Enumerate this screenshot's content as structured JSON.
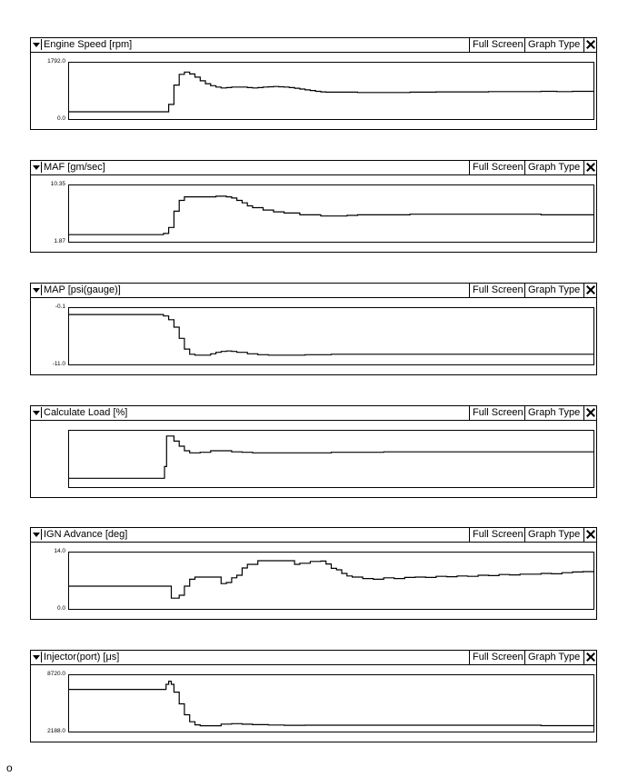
{
  "buttons": {
    "full_screen": "Full Screen",
    "graph_type": "Graph Type"
  },
  "panels": [
    {
      "title": "Engine Speed [rpm]",
      "y_max": "1792.0",
      "y_min": "0.0",
      "chart_data": {
        "type": "line",
        "title": "Engine Speed [rpm]",
        "ylim": [
          0,
          1792
        ],
        "xlim": [
          0,
          100
        ],
        "points": [
          [
            0,
            160
          ],
          [
            18,
            160
          ],
          [
            19,
            420
          ],
          [
            20,
            1100
          ],
          [
            21,
            1480
          ],
          [
            22,
            1560
          ],
          [
            23,
            1490
          ],
          [
            24,
            1380
          ],
          [
            25,
            1250
          ],
          [
            26,
            1150
          ],
          [
            27,
            1080
          ],
          [
            28,
            1030
          ],
          [
            29,
            1000
          ],
          [
            30,
            1010
          ],
          [
            31,
            1030
          ],
          [
            32,
            1030
          ],
          [
            33,
            1030
          ],
          [
            34,
            1010
          ],
          [
            35,
            1000
          ],
          [
            36,
            1010
          ],
          [
            37,
            1030
          ],
          [
            38,
            1040
          ],
          [
            39,
            1050
          ],
          [
            40,
            1040
          ],
          [
            41,
            1030
          ],
          [
            42,
            1010
          ],
          [
            43,
            990
          ],
          [
            44,
            960
          ],
          [
            45,
            930
          ],
          [
            46,
            910
          ],
          [
            47,
            880
          ],
          [
            48,
            860
          ],
          [
            49,
            850
          ],
          [
            50,
            850
          ],
          [
            55,
            840
          ],
          [
            60,
            840
          ],
          [
            65,
            850
          ],
          [
            70,
            860
          ],
          [
            75,
            860
          ],
          [
            80,
            870
          ],
          [
            85,
            870
          ],
          [
            90,
            880
          ],
          [
            93,
            870
          ],
          [
            96,
            880
          ],
          [
            100,
            880
          ]
        ]
      }
    },
    {
      "title": "MAF [gm/sec]",
      "y_max": "10.35",
      "y_min": "1.87",
      "chart_data": {
        "type": "line",
        "title": "MAF [gm/sec]",
        "ylim": [
          1.87,
          10.35
        ],
        "xlim": [
          0,
          100
        ],
        "points": [
          [
            0,
            2.6
          ],
          [
            17,
            2.6
          ],
          [
            18,
            2.8
          ],
          [
            19,
            3.8
          ],
          [
            20,
            6.5
          ],
          [
            21,
            8.3
          ],
          [
            22,
            8.9
          ],
          [
            25,
            8.9
          ],
          [
            28,
            9.0
          ],
          [
            30,
            8.9
          ],
          [
            31,
            8.7
          ],
          [
            32,
            8.3
          ],
          [
            33,
            7.9
          ],
          [
            34,
            7.4
          ],
          [
            35,
            7.1
          ],
          [
            37,
            6.7
          ],
          [
            39,
            6.4
          ],
          [
            41,
            6.2
          ],
          [
            44,
            5.9
          ],
          [
            48,
            5.7
          ],
          [
            51,
            5.7
          ],
          [
            53,
            5.8
          ],
          [
            55,
            5.9
          ],
          [
            60,
            5.9
          ],
          [
            65,
            6.0
          ],
          [
            70,
            6.0
          ],
          [
            75,
            6.0
          ],
          [
            80,
            6.0
          ],
          [
            85,
            6.0
          ],
          [
            90,
            5.9
          ],
          [
            95,
            5.9
          ],
          [
            100,
            5.9
          ]
        ]
      }
    },
    {
      "title": "MAP [psi(gauge)]",
      "y_max": "-0.1",
      "y_min": "-11.0",
      "chart_data": {
        "type": "line",
        "title": "MAP [psi(gauge)]",
        "ylim": [
          -11.0,
          -0.1
        ],
        "xlim": [
          0,
          100
        ],
        "points": [
          [
            0,
            -0.9
          ],
          [
            17,
            -0.9
          ],
          [
            18,
            -1.2
          ],
          [
            19,
            -2.0
          ],
          [
            20,
            -3.6
          ],
          [
            21,
            -6.0
          ],
          [
            22,
            -8.3
          ],
          [
            23,
            -9.4
          ],
          [
            24,
            -9.6
          ],
          [
            26,
            -9.6
          ],
          [
            27,
            -9.3
          ],
          [
            28,
            -9.0
          ],
          [
            29,
            -8.8
          ],
          [
            30,
            -8.7
          ],
          [
            31,
            -8.8
          ],
          [
            32,
            -9.0
          ],
          [
            34,
            -9.3
          ],
          [
            36,
            -9.5
          ],
          [
            38,
            -9.6
          ],
          [
            40,
            -9.6
          ],
          [
            45,
            -9.5
          ],
          [
            50,
            -9.4
          ],
          [
            60,
            -9.4
          ],
          [
            70,
            -9.4
          ],
          [
            80,
            -9.4
          ],
          [
            90,
            -9.4
          ],
          [
            100,
            -9.4
          ]
        ]
      }
    },
    {
      "title": "Calculate Load [%]",
      "y_max": "",
      "y_min": "",
      "chart_data": {
        "type": "line",
        "title": "Calculate Load [%]",
        "ylim": [
          0,
          100
        ],
        "xlim": [
          0,
          100
        ],
        "points": [
          [
            0,
            12
          ],
          [
            18,
            12
          ],
          [
            18.2,
            35
          ],
          [
            18.6,
            95
          ],
          [
            19.5,
            95
          ],
          [
            20,
            85
          ],
          [
            21,
            75
          ],
          [
            22,
            66
          ],
          [
            23,
            62
          ],
          [
            25,
            63
          ],
          [
            27,
            66
          ],
          [
            29,
            66
          ],
          [
            31,
            64
          ],
          [
            33,
            63
          ],
          [
            35,
            62
          ],
          [
            40,
            62
          ],
          [
            45,
            62
          ],
          [
            50,
            63
          ],
          [
            55,
            63
          ],
          [
            60,
            64
          ],
          [
            65,
            64
          ],
          [
            70,
            64
          ],
          [
            75,
            64
          ],
          [
            80,
            64
          ],
          [
            85,
            64
          ],
          [
            90,
            64
          ],
          [
            95,
            64
          ],
          [
            100,
            64
          ]
        ]
      }
    },
    {
      "title": "IGN Advance [deg]",
      "y_max": "14.0",
      "y_min": "0.0",
      "chart_data": {
        "type": "line",
        "title": "IGN Advance [deg]",
        "ylim": [
          0,
          14
        ],
        "xlim": [
          0,
          100
        ],
        "points": [
          [
            0,
            5.5
          ],
          [
            19,
            5.5
          ],
          [
            19.5,
            2.2
          ],
          [
            21,
            3.0
          ],
          [
            22,
            5.5
          ],
          [
            23,
            7.4
          ],
          [
            24,
            8.0
          ],
          [
            28,
            8.0
          ],
          [
            29,
            6.2
          ],
          [
            30,
            6.5
          ],
          [
            31,
            7.8
          ],
          [
            32,
            8.5
          ],
          [
            33,
            10.5
          ],
          [
            34,
            11.5
          ],
          [
            36,
            12.5
          ],
          [
            38,
            12.5
          ],
          [
            42,
            12.5
          ],
          [
            43,
            11.5
          ],
          [
            44,
            11.8
          ],
          [
            46,
            12.3
          ],
          [
            48,
            12.4
          ],
          [
            49,
            11.6
          ],
          [
            50,
            10.4
          ],
          [
            51,
            10.0
          ],
          [
            52,
            9.0
          ],
          [
            53,
            8.3
          ],
          [
            54,
            8.0
          ],
          [
            56,
            7.6
          ],
          [
            58,
            7.4
          ],
          [
            60,
            7.8
          ],
          [
            62,
            7.6
          ],
          [
            64,
            7.9
          ],
          [
            66,
            8.0
          ],
          [
            68,
            7.9
          ],
          [
            70,
            8.2
          ],
          [
            72,
            8.1
          ],
          [
            74,
            8.3
          ],
          [
            76,
            8.2
          ],
          [
            78,
            8.5
          ],
          [
            80,
            8.4
          ],
          [
            82,
            8.7
          ],
          [
            84,
            8.6
          ],
          [
            86,
            8.8
          ],
          [
            88,
            8.8
          ],
          [
            90,
            9.0
          ],
          [
            92,
            8.9
          ],
          [
            94,
            9.2
          ],
          [
            96,
            9.4
          ],
          [
            98,
            9.5
          ],
          [
            100,
            9.3
          ]
        ]
      }
    },
    {
      "title": "Injector(port) [μs]",
      "y_max": "8720.0",
      "y_min": "2188.0",
      "chart_data": {
        "type": "line",
        "title": "Injector(port) [μs]",
        "ylim": [
          2188,
          8720
        ],
        "xlim": [
          0,
          100
        ],
        "points": [
          [
            0,
            7250
          ],
          [
            18,
            7250
          ],
          [
            18.5,
            7900
          ],
          [
            19,
            8300
          ],
          [
            19.5,
            7900
          ],
          [
            20,
            6900
          ],
          [
            21,
            5400
          ],
          [
            22,
            4000
          ],
          [
            23,
            3100
          ],
          [
            24,
            2700
          ],
          [
            25,
            2580
          ],
          [
            27,
            2580
          ],
          [
            29,
            2800
          ],
          [
            31,
            2850
          ],
          [
            33,
            2780
          ],
          [
            35,
            2720
          ],
          [
            38,
            2680
          ],
          [
            41,
            2640
          ],
          [
            45,
            2650
          ],
          [
            50,
            2650
          ],
          [
            55,
            2650
          ],
          [
            60,
            2650
          ],
          [
            65,
            2650
          ],
          [
            70,
            2650
          ],
          [
            75,
            2650
          ],
          [
            80,
            2650
          ],
          [
            85,
            2650
          ],
          [
            90,
            2600
          ],
          [
            95,
            2600
          ],
          [
            100,
            2600
          ]
        ]
      }
    }
  ],
  "stray_char": "o"
}
